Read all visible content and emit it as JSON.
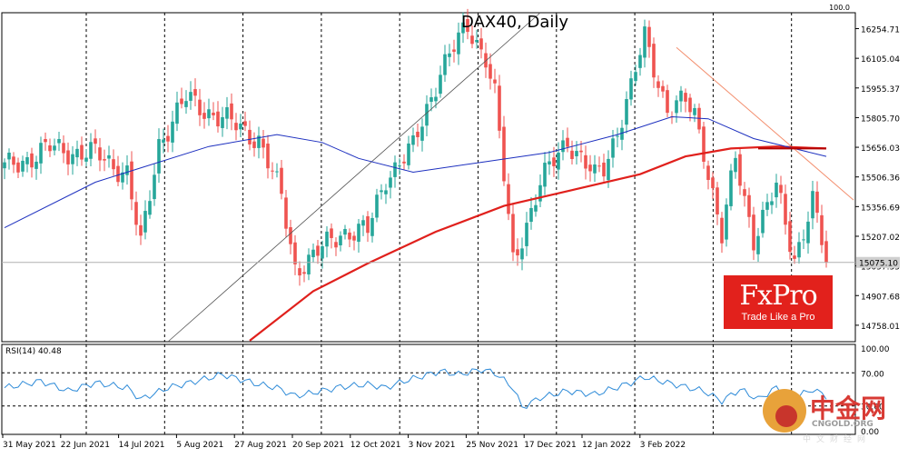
{
  "chart_data": {
    "type": "line",
    "title": "DAX40, Daily",
    "instrument": "DAX40",
    "timeframe": "Daily",
    "price_axis": {
      "ticks": [
        16254.71,
        16105.04,
        15955.37,
        15805.7,
        15656.03,
        15506.36,
        15356.69,
        15207.02,
        15057.35,
        14907.68,
        14758.01
      ],
      "range": [
        14675,
        16335
      ]
    },
    "last_price": "15075.10",
    "top_label": "100.0",
    "x_axis": {
      "labels": [
        "31 May 2021",
        "22 Jun 2021",
        "14 Jul 2021",
        "5 Aug 2021",
        "27 Aug 2021",
        "20 Sep 2021",
        "12 Oct 2021",
        "3 Nov 2021",
        "25 Nov 2021",
        "17 Dec 2021",
        "12 Jan 2022",
        "3 Feb 2022"
      ]
    },
    "candles": {
      "colors": {
        "up": "#26a69a",
        "down": "#ef5350"
      },
      "close_anchors": [
        [
          0,
          15550
        ],
        [
          10,
          15650
        ],
        [
          20,
          15620
        ],
        [
          27,
          15530
        ],
        [
          30,
          15150
        ],
        [
          34,
          15680
        ],
        [
          40,
          15900
        ],
        [
          48,
          15800
        ],
        [
          56,
          15700
        ],
        [
          61,
          15400
        ],
        [
          64,
          15050
        ],
        [
          68,
          15100
        ],
        [
          74,
          15230
        ],
        [
          80,
          15230
        ],
        [
          84,
          15510
        ],
        [
          90,
          15650
        ],
        [
          96,
          16050
        ],
        [
          102,
          16260
        ],
        [
          106,
          16120
        ],
        [
          108,
          15920
        ],
        [
          112,
          15080
        ],
        [
          118,
          15470
        ],
        [
          124,
          15700
        ],
        [
          130,
          15500
        ],
        [
          132,
          15550
        ],
        [
          138,
          15950
        ],
        [
          141,
          16210
        ],
        [
          146,
          15850
        ],
        [
          150,
          15880
        ],
        [
          152,
          15820
        ],
        [
          154,
          15650
        ],
        [
          158,
          15200
        ],
        [
          161,
          15600
        ],
        [
          165,
          15200
        ],
        [
          170,
          15450
        ],
        [
          174,
          15100
        ],
        [
          178,
          15380
        ],
        [
          181,
          15075
        ]
      ]
    },
    "indicators": {
      "ma_fast": {
        "color": "#1c2fbf",
        "points": [
          [
            0,
            15250
          ],
          [
            20,
            15480
          ],
          [
            45,
            15660
          ],
          [
            60,
            15720
          ],
          [
            70,
            15680
          ],
          [
            78,
            15600
          ],
          [
            90,
            15530
          ],
          [
            105,
            15580
          ],
          [
            120,
            15630
          ],
          [
            135,
            15720
          ],
          [
            147,
            15810
          ],
          [
            155,
            15800
          ],
          [
            165,
            15700
          ],
          [
            181,
            15610
          ]
        ]
      },
      "ma_slow": {
        "color": "#e0201c",
        "points": [
          [
            54,
            14680
          ],
          [
            68,
            14930
          ],
          [
            80,
            15070
          ],
          [
            95,
            15230
          ],
          [
            110,
            15360
          ],
          [
            125,
            15440
          ],
          [
            140,
            15520
          ],
          [
            150,
            15610
          ],
          [
            160,
            15650
          ],
          [
            170,
            15660
          ],
          [
            181,
            15650
          ]
        ]
      },
      "trendline_up": {
        "color": "#555555",
        "points": [
          [
            36,
            14675
          ],
          [
            118,
            16335
          ]
        ]
      },
      "trendline_down": {
        "color": "#f39070",
        "points": [
          [
            148,
            16160
          ],
          [
            187,
            15390
          ]
        ]
      },
      "horizontal_level": {
        "color": "#b40000",
        "points": [
          [
            166,
            15650
          ],
          [
            181,
            15650
          ]
        ]
      }
    },
    "rsi": {
      "label": "RSI(14) 40.48",
      "ticks": [
        "100.00",
        "70.00",
        "30.00",
        "0.00"
      ],
      "levels": [
        70,
        30
      ],
      "anchors": [
        [
          0,
          52
        ],
        [
          8,
          60
        ],
        [
          14,
          48
        ],
        [
          20,
          58
        ],
        [
          27,
          52
        ],
        [
          30,
          38
        ],
        [
          36,
          52
        ],
        [
          40,
          57
        ],
        [
          48,
          68
        ],
        [
          52,
          62
        ],
        [
          56,
          56
        ],
        [
          60,
          52
        ],
        [
          64,
          42
        ],
        [
          68,
          46
        ],
        [
          74,
          53
        ],
        [
          80,
          56
        ],
        [
          84,
          52
        ],
        [
          88,
          60
        ],
        [
          96,
          72
        ],
        [
          100,
          68
        ],
        [
          105,
          74
        ],
        [
          108,
          70
        ],
        [
          112,
          52
        ],
        [
          114,
          28
        ],
        [
          118,
          40
        ],
        [
          124,
          48
        ],
        [
          130,
          44
        ],
        [
          138,
          58
        ],
        [
          141,
          65
        ],
        [
          146,
          58
        ],
        [
          154,
          48
        ],
        [
          158,
          36
        ],
        [
          162,
          50
        ],
        [
          166,
          38
        ],
        [
          170,
          52
        ],
        [
          174,
          40
        ],
        [
          178,
          50
        ],
        [
          181,
          42
        ]
      ]
    },
    "grid": "vertical-dashed"
  },
  "branding": {
    "logo": "FxPro",
    "tagline": "Trade Like a Pro",
    "watermark_cn": "中金网",
    "watermark_site": "CNGOLD.ORG",
    "watermark_sub": "中文财经网"
  }
}
